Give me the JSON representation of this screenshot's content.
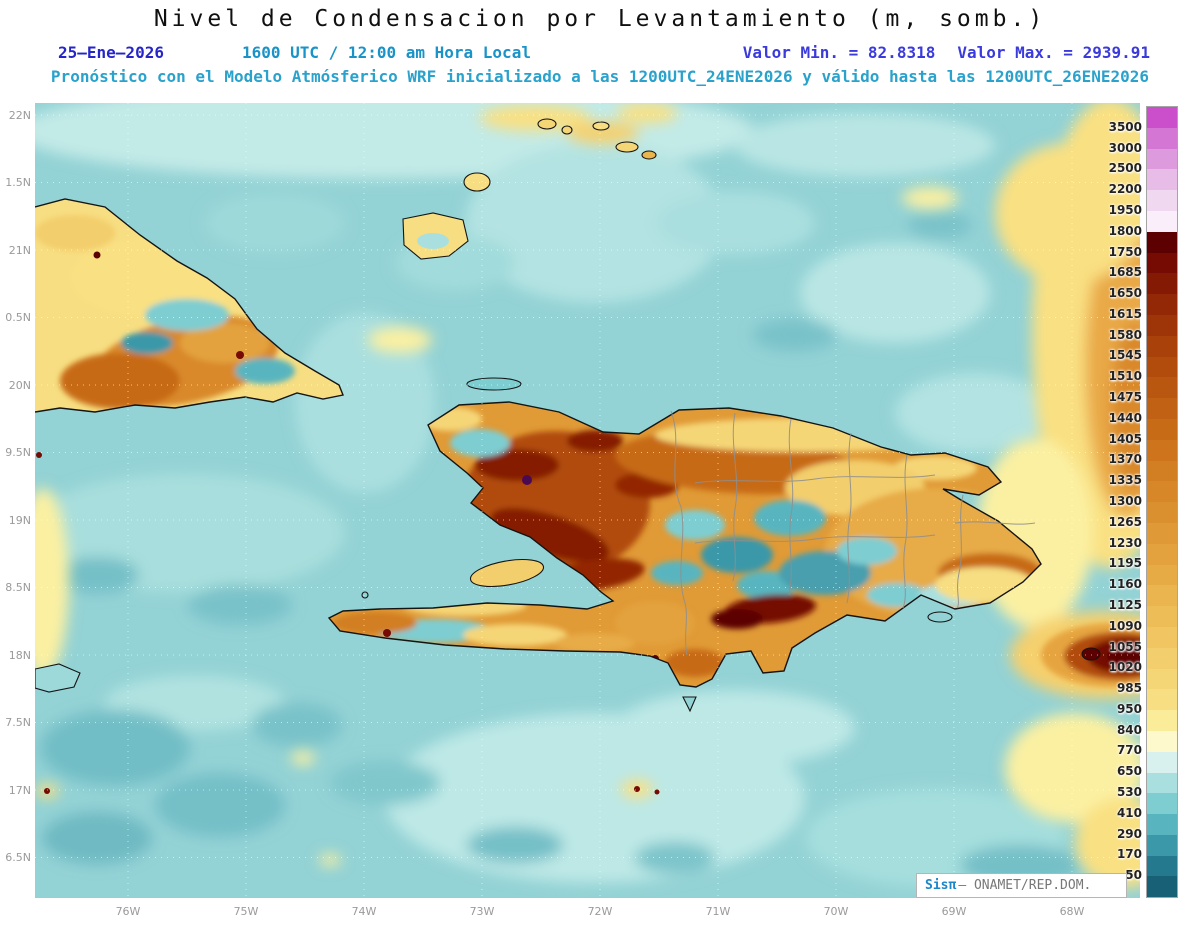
{
  "header": {
    "title": "Nivel de Condensacion por Levantamiento (m, somb.)",
    "date": "25—Ene—2026",
    "time": "1600 UTC / 12:00 am Hora Local",
    "min_label": "Valor Min. = 82.8318",
    "max_label": "Valor Max. = 2939.91",
    "forecast_line": "Pronóstico con el Modelo Atmósferico WRF inicializado a las 1200UTC_24ENE2026 y válido hasta las 1200UTC_26ENE2026"
  },
  "map": {
    "y_ticks": [
      "22N",
      "1.5N",
      "21N",
      "0.5N",
      "20N",
      "9.5N",
      "19N",
      "8.5N",
      "18N",
      "7.5N",
      "17N",
      "6.5N"
    ],
    "x_ticks": [
      "76W",
      "75W",
      "74W",
      "73W",
      "72W",
      "71W",
      "70W",
      "69W",
      "68W"
    ],
    "watermark": {
      "brand": "Sisπ",
      "rest": "— ONAMET/REP.DOM."
    }
  },
  "colorbar": {
    "labels": [
      "3500",
      "3000",
      "2500",
      "2200",
      "1950",
      "1800",
      "1750",
      "1685",
      "1650",
      "1615",
      "1580",
      "1545",
      "1510",
      "1475",
      "1440",
      "1405",
      "1370",
      "1335",
      "1300",
      "1265",
      "1230",
      "1195",
      "1160",
      "1125",
      "1090",
      "1055",
      "1020",
      "985",
      "950",
      "840",
      "770",
      "650",
      "530",
      "410",
      "290",
      "170",
      "50"
    ],
    "colors": [
      "#cb4fcb",
      "#d476d4",
      "#dd9bdd",
      "#e7bce7",
      "#f1d8f1",
      "#faeefa",
      "#5c0001",
      "#750b02",
      "#851a04",
      "#932806",
      "#9e3508",
      "#a8410a",
      "#b14c0d",
      "#b95710",
      "#c06113",
      "#c76b17",
      "#cd741c",
      "#d27e22",
      "#d78728",
      "#db902f",
      "#df9936",
      "#e3a23e",
      "#e7ab46",
      "#eab44f",
      "#edbd58",
      "#f0c562",
      "#f3ce6c",
      "#f5d677",
      "#f7de82",
      "#fbec9a",
      "#fef8cd",
      "#d8f1ee",
      "#a9e0df",
      "#7ecdd1",
      "#58b5bf",
      "#3a98a9",
      "#24798f",
      "#176076"
    ]
  },
  "chart_data": {
    "type": "heatmap",
    "title": "Nivel de Condensacion por Levantamiento (m, somb.)",
    "units": "m",
    "value_min": 82.8318,
    "value_max": 2939.91,
    "valid_time": "25—Ene—2026 1600 UTC / 12:00 am Hora Local",
    "model": "WRF",
    "initialized": "1200UTC_24ENE2026",
    "valid_until": "1200UTC_26ENE2026",
    "lon_ticks": [
      "76W",
      "75W",
      "74W",
      "73W",
      "72W",
      "71W",
      "70W",
      "69W",
      "68W"
    ],
    "lat_ticks": [
      "22N",
      "1.5N",
      "21N",
      "0.5N",
      "20N",
      "9.5N",
      "19N",
      "8.5N",
      "18N",
      "7.5N",
      "17N",
      "6.5N"
    ],
    "contour_levels": [
      50,
      170,
      290,
      410,
      530,
      650,
      770,
      840,
      950,
      985,
      1020,
      1055,
      1090,
      1125,
      1160,
      1195,
      1230,
      1265,
      1300,
      1335,
      1370,
      1405,
      1440,
      1475,
      1510,
      1545,
      1580,
      1615,
      1650,
      1685,
      1750,
      1800,
      1950,
      2200,
      2500,
      3000,
      3500
    ],
    "legend_position": "right",
    "region": "Cuba / Hispaniola / Caribbean"
  }
}
